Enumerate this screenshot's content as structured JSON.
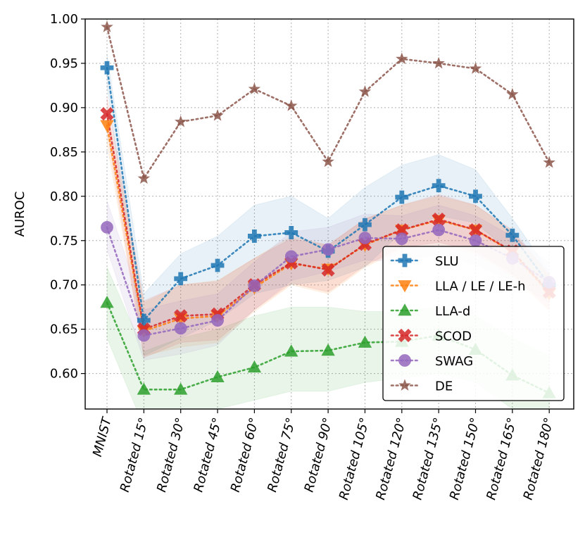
{
  "chart_data": {
    "type": "line",
    "ylabel": "AUROC",
    "ylim": [
      0.56,
      1.0
    ],
    "yticks": [
      0.6,
      0.65,
      0.7,
      0.75,
      0.8,
      0.85,
      0.9,
      0.95,
      1.0
    ],
    "ytick_labels": [
      "0.60",
      "0.65",
      "0.70",
      "0.75",
      "0.80",
      "0.85",
      "0.90",
      "0.95",
      "1.00"
    ],
    "categories": [
      "MNIST",
      "Rotated 15°",
      "Rotated 30°",
      "Rotated 45°",
      "Rotated 60°",
      "Rotated 75°",
      "Rotated 90°",
      "Rotated 105°",
      "Rotated 120°",
      "Rotated 135°",
      "Rotated 150°",
      "Rotated 165°",
      "Rotated 180°"
    ],
    "grid": true,
    "legend_position": "lower-right",
    "series": [
      {
        "name": "SLU",
        "color": "#1f77b4",
        "marker": "plus",
        "values": [
          0.945,
          0.66,
          0.707,
          0.722,
          0.755,
          0.759,
          0.738,
          0.768,
          0.799,
          0.812,
          0.8,
          0.756,
          0.7
        ],
        "band_lower": [
          0.925,
          0.62,
          0.64,
          0.66,
          0.69,
          0.7,
          0.705,
          0.72,
          0.76,
          0.778,
          0.77,
          0.735,
          0.69
        ],
        "band_upper": [
          0.96,
          0.69,
          0.735,
          0.755,
          0.79,
          0.8,
          0.775,
          0.81,
          0.835,
          0.847,
          0.83,
          0.775,
          0.715
        ]
      },
      {
        "name": "LLA / LE / LE-h",
        "color": "#ff7f0e",
        "marker": "triangle-down",
        "values": [
          0.88,
          0.648,
          0.662,
          0.665,
          0.697,
          0.724,
          0.718,
          0.745,
          0.762,
          0.773,
          0.762,
          0.737,
          0.69
        ],
        "band_lower": [
          0.86,
          0.62,
          0.63,
          0.635,
          0.67,
          0.7,
          0.69,
          0.72,
          0.74,
          0.745,
          0.735,
          0.71,
          0.67
        ],
        "band_upper": [
          0.9,
          0.68,
          0.7,
          0.705,
          0.73,
          0.755,
          0.745,
          0.775,
          0.79,
          0.8,
          0.79,
          0.76,
          0.71
        ]
      },
      {
        "name": "LLA-d",
        "color": "#2ca02c",
        "marker": "triangle-up",
        "values": [
          0.68,
          0.582,
          0.582,
          0.596,
          0.607,
          0.625,
          0.626,
          0.635,
          0.636,
          0.643,
          0.627,
          0.598,
          0.578
        ],
        "band_lower": [
          0.64,
          0.54,
          0.545,
          0.56,
          0.57,
          0.58,
          0.58,
          0.59,
          0.595,
          0.6,
          0.59,
          0.56,
          0.54
        ],
        "band_upper": [
          0.72,
          0.625,
          0.64,
          0.65,
          0.665,
          0.675,
          0.675,
          0.67,
          0.67,
          0.675,
          0.665,
          0.64,
          0.62
        ]
      },
      {
        "name": "SCOD",
        "color": "#d62728",
        "marker": "x",
        "values": [
          0.893,
          0.65,
          0.665,
          0.667,
          0.7,
          0.725,
          0.717,
          0.746,
          0.762,
          0.774,
          0.762,
          0.738,
          0.692
        ],
        "band_lower": [
          0.875,
          0.618,
          0.635,
          0.638,
          0.672,
          0.702,
          0.692,
          0.722,
          0.742,
          0.748,
          0.738,
          0.712,
          0.672
        ],
        "band_upper": [
          0.912,
          0.682,
          0.7,
          0.704,
          0.73,
          0.752,
          0.745,
          0.774,
          0.79,
          0.802,
          0.79,
          0.762,
          0.712
        ]
      },
      {
        "name": "SWAG",
        "color": "#9467bd",
        "marker": "circle",
        "values": [
          0.765,
          0.643,
          0.651,
          0.66,
          0.699,
          0.732,
          0.74,
          0.753,
          0.752,
          0.762,
          0.75,
          0.73,
          0.703
        ],
        "band_lower": [
          0.74,
          0.615,
          0.622,
          0.632,
          0.672,
          0.705,
          0.715,
          0.728,
          0.726,
          0.735,
          0.722,
          0.705,
          0.68
        ],
        "band_upper": [
          0.795,
          0.672,
          0.682,
          0.69,
          0.726,
          0.76,
          0.765,
          0.78,
          0.778,
          0.79,
          0.778,
          0.755,
          0.726
        ]
      },
      {
        "name": "DE",
        "color": "#8c564b",
        "marker": "star",
        "values": [
          0.991,
          0.82,
          0.884,
          0.891,
          0.921,
          0.902,
          0.839,
          0.918,
          0.955,
          0.95,
          0.944,
          0.915,
          0.838
        ]
      }
    ]
  }
}
